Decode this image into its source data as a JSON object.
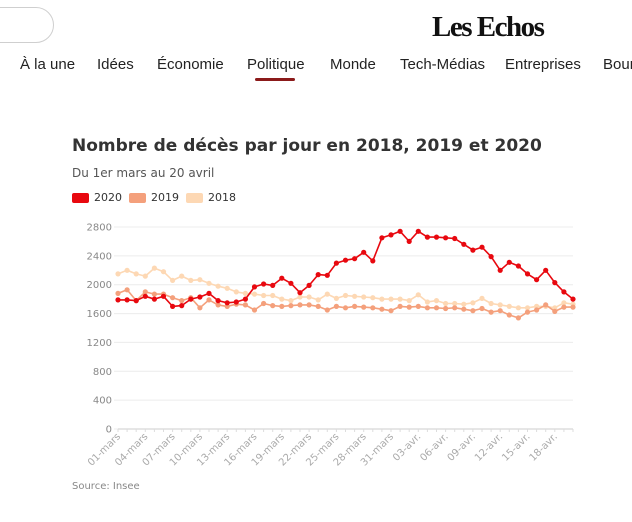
{
  "header": {
    "logo": "Les Echos",
    "nav": [
      "À la une",
      "Idées",
      "Économie",
      "Politique",
      "Monde",
      "Tech-Médias",
      "Entreprises",
      "Bour"
    ],
    "active_nav": "Politique"
  },
  "colors": {
    "series_2020": "#e8080f",
    "series_2019": "#f4a07c",
    "series_2018": "#fdd8b4",
    "active_underline": "#8b1a1a"
  },
  "chart_data": {
    "type": "line",
    "title": "Nombre de décès par jour en 2018, 2019 et 2020",
    "subtitle": "Du 1er mars au 20 avril",
    "source": "Source: Insee",
    "ylim": [
      0,
      2800
    ],
    "yticks": [
      0,
      400,
      800,
      1200,
      1600,
      2000,
      2400,
      2800
    ],
    "grid": true,
    "legend_position": "top-left",
    "x": [
      "01-mars",
      "02-mars",
      "03-mars",
      "04-mars",
      "05-mars",
      "06-mars",
      "07-mars",
      "08-mars",
      "09-mars",
      "10-mars",
      "11-mars",
      "12-mars",
      "13-mars",
      "14-mars",
      "15-mars",
      "16-mars",
      "17-mars",
      "18-mars",
      "19-mars",
      "20-mars",
      "21-mars",
      "22-mars",
      "23-mars",
      "24-mars",
      "25-mars",
      "26-mars",
      "27-mars",
      "28-mars",
      "29-mars",
      "30-mars",
      "31-mars",
      "01-avr.",
      "02-avr.",
      "03-avr.",
      "04-avr.",
      "05-avr.",
      "06-avr.",
      "07-avr.",
      "08-avr.",
      "09-avr.",
      "10-avr.",
      "11-avr.",
      "12-avr.",
      "13-avr.",
      "14-avr.",
      "15-avr.",
      "16-avr.",
      "17-avr.",
      "18-avr.",
      "19-avr.",
      "20-avr."
    ],
    "x_tick_labels": [
      "01-mars",
      "04-mars",
      "07-mars",
      "10-mars",
      "13-mars",
      "16-mars",
      "19-mars",
      "22-mars",
      "25-mars",
      "28-mars",
      "31-mars",
      "03-avr.",
      "06-avr.",
      "09-avr.",
      "12-avr.",
      "15-avr.",
      "18-avr."
    ],
    "series": [
      {
        "name": "2020",
        "color": "#e8080f",
        "values": [
          1790,
          1790,
          1780,
          1840,
          1800,
          1840,
          1700,
          1710,
          1800,
          1830,
          1880,
          1780,
          1750,
          1760,
          1800,
          1970,
          2010,
          1990,
          2090,
          2020,
          1890,
          1990,
          2140,
          2130,
          2300,
          2340,
          2360,
          2450,
          2330,
          2650,
          2690,
          2740,
          2600,
          2740,
          2660,
          2660,
          2650,
          2640,
          2560,
          2480,
          2520,
          2390,
          2200,
          2310,
          2260,
          2150,
          2070,
          2200,
          2030,
          1900,
          1800
        ]
      },
      {
        "name": "2019",
        "color": "#f4a07c",
        "values": [
          1880,
          1930,
          1780,
          1900,
          1870,
          1870,
          1820,
          1780,
          1820,
          1680,
          1790,
          1720,
          1700,
          1730,
          1720,
          1650,
          1740,
          1710,
          1700,
          1710,
          1720,
          1720,
          1700,
          1650,
          1700,
          1680,
          1700,
          1690,
          1680,
          1660,
          1640,
          1700,
          1690,
          1700,
          1680,
          1680,
          1670,
          1680,
          1660,
          1640,
          1670,
          1620,
          1640,
          1580,
          1540,
          1620,
          1650,
          1720,
          1630,
          1690,
          1690
        ]
      },
      {
        "name": "2018",
        "color": "#fdd8b4",
        "values": [
          2150,
          2200,
          2150,
          2120,
          2230,
          2180,
          2060,
          2120,
          2060,
          2070,
          2020,
          1980,
          1950,
          1900,
          1880,
          1870,
          1850,
          1850,
          1800,
          1780,
          1830,
          1830,
          1790,
          1870,
          1810,
          1850,
          1840,
          1830,
          1820,
          1800,
          1800,
          1800,
          1780,
          1860,
          1760,
          1780,
          1740,
          1740,
          1730,
          1750,
          1810,
          1740,
          1720,
          1700,
          1680,
          1680,
          1700,
          1700,
          1680,
          1750,
          1730
        ]
      }
    ]
  }
}
